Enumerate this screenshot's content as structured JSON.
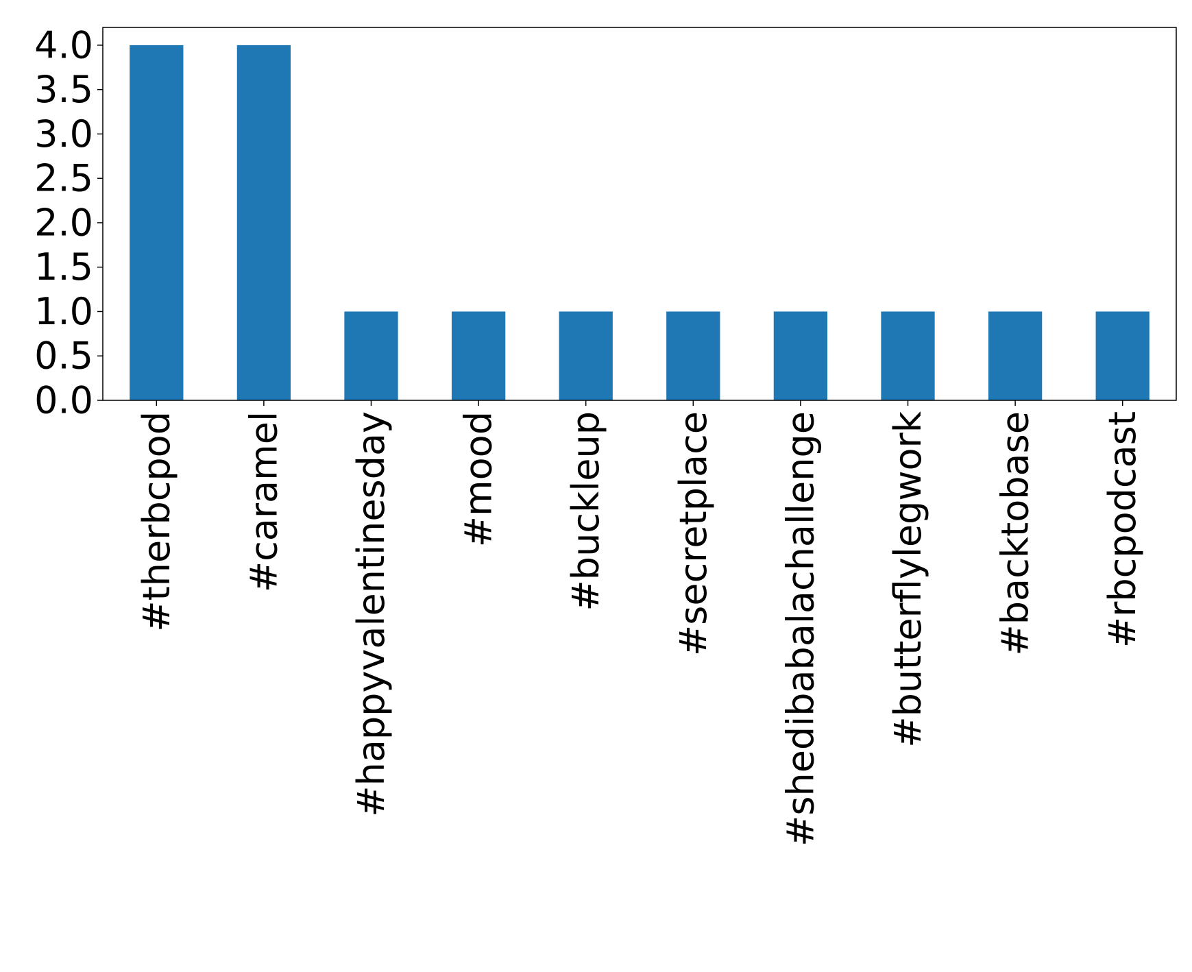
{
  "chart_data": {
    "type": "bar",
    "categories": [
      "#therbcpod",
      "#caramel",
      "#happyvalentinesday",
      "#mood",
      "#buckleup",
      "#secretplace",
      "#shedibabalachallenge",
      "#butterflylegwork",
      "#backtobase",
      "#rbcpodcast"
    ],
    "values": [
      4,
      4,
      1,
      1,
      1,
      1,
      1,
      1,
      1,
      1
    ],
    "color": "#1f77b4",
    "ylim": [
      0,
      4.2
    ],
    "yticks": [
      {
        "value": 0,
        "label": "0.0"
      },
      0.5,
      {
        "value": 1,
        "label": "1.0"
      },
      1.5,
      {
        "value": 2,
        "label": "2.0"
      },
      2.5,
      {
        "value": 3,
        "label": "3.0"
      },
      3.5,
      {
        "value": 4,
        "label": "4.0"
      }
    ],
    "grid": false
  }
}
